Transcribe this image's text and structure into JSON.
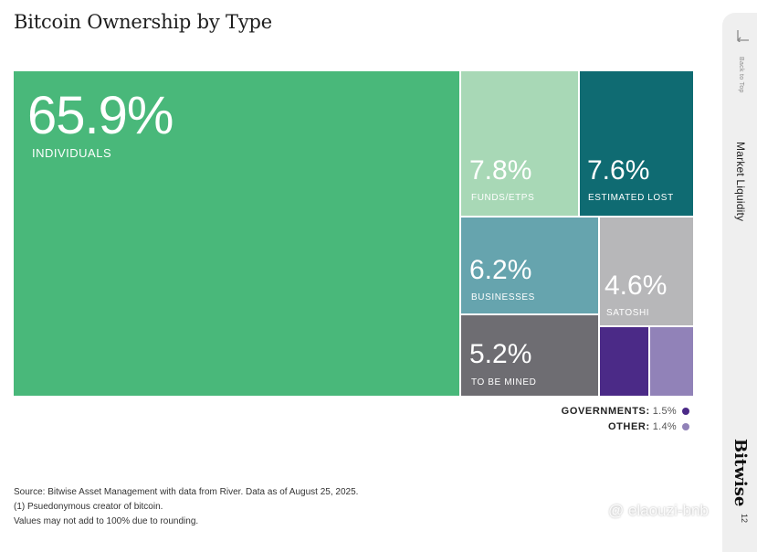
{
  "title": "Bitcoin Ownership by Type",
  "chart_data": {
    "type": "treemap",
    "title": "Bitcoin Ownership by Type",
    "unit": "%",
    "items": [
      {
        "key": "individuals",
        "label": "INDIVIDUALS",
        "value": 65.9,
        "display": "65.9%",
        "color": "#49b87a"
      },
      {
        "key": "funds",
        "label": "FUNDS/ETPS",
        "value": 7.8,
        "display": "7.8%",
        "color": "#a8d8b6"
      },
      {
        "key": "lost",
        "label": "ESTIMATED LOST",
        "value": 7.6,
        "display": "7.6%",
        "color": "#0f6b72"
      },
      {
        "key": "businesses",
        "label": "BUSINESSES",
        "value": 6.2,
        "display": "6.2%",
        "color": "#66a4ae"
      },
      {
        "key": "to_be_mined",
        "label": "TO BE MINED",
        "value": 5.2,
        "display": "5.2%",
        "color": "#6e6d72"
      },
      {
        "key": "satoshi",
        "label": "SATOSHI",
        "value": 4.6,
        "display": "4.6%",
        "color": "#b7b7b9"
      },
      {
        "key": "governments",
        "label": "GOVERNMENTS:",
        "value": 1.5,
        "display": "1.5%",
        "color": "#4b2a87"
      },
      {
        "key": "other",
        "label": "OTHER:",
        "value": 1.4,
        "display": "1.4%",
        "color": "#9182b8"
      }
    ]
  },
  "notes": [
    "Source: Bitwise Asset Management with data from River. Data as of August 25, 2025.",
    "(1) Psuedonymous creator of bitcoin.",
    "Values may not add to 100% due to rounding."
  ],
  "sidebar": {
    "back_label": "Back to Top",
    "back_icon": "return-arrow-icon",
    "section": "Market Liquidity",
    "brand": "Bitwise",
    "page_number": "12"
  },
  "watermark": {
    "text": "@ elaouzi-bnb",
    "icon": "binance-logo-icon"
  }
}
